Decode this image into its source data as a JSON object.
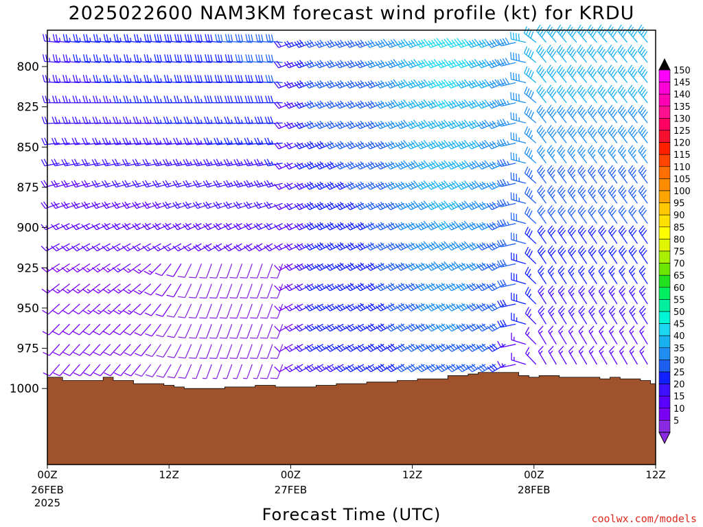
{
  "chart_data": {
    "type": "wind_barb_time_height",
    "title": "2025022600 NAM3KM forecast wind profile (kt) for KRDU",
    "xlabel": "Forecast Time (UTC)",
    "credit": "coolwx.com/models",
    "y_axis": {
      "quantity": "pressure (hPa)",
      "ticks": [
        800,
        825,
        850,
        875,
        900,
        925,
        950,
        975,
        1000
      ],
      "range": [
        782,
        1007
      ],
      "inverted": true
    },
    "x_axis": {
      "forecast_hours_range": [
        0,
        60
      ],
      "ticks": [
        {
          "hour": 0,
          "label": "00Z",
          "date": "26FEB",
          "year": "2025"
        },
        {
          "hour": 12,
          "label": "12Z",
          "date": "",
          "year": ""
        },
        {
          "hour": 24,
          "label": "00Z",
          "date": "27FEB",
          "year": ""
        },
        {
          "hour": 36,
          "label": "12Z",
          "date": "",
          "year": ""
        },
        {
          "hour": 48,
          "label": "00Z",
          "date": "28FEB",
          "year": ""
        },
        {
          "hour": 60,
          "label": "12Z",
          "date": "",
          "year": ""
        }
      ]
    },
    "colorbar": {
      "units": "kt",
      "values": [
        5,
        10,
        15,
        20,
        25,
        30,
        35,
        40,
        45,
        50,
        55,
        60,
        65,
        70,
        75,
        80,
        85,
        90,
        95,
        100,
        105,
        110,
        115,
        120,
        125,
        130,
        135,
        140,
        145,
        150
      ],
      "colors": [
        "#8a2be2",
        "#7a00f5",
        "#5a00ff",
        "#3e10ff",
        "#1020ff",
        "#1f5ff0",
        "#1f8ef0",
        "#19b0f0",
        "#1bd8f0",
        "#00f5d5",
        "#00f0a0",
        "#00ee60",
        "#20e020",
        "#6ae600",
        "#a8f000",
        "#e0f500",
        "#ffff00",
        "#ffe000",
        "#ffc800",
        "#ffa500",
        "#ff8c00",
        "#ff7000",
        "#ff4500",
        "#ff2000",
        "#f51030",
        "#ff0060",
        "#ff1090",
        "#ff00b5",
        "#ff00d8",
        "#ff00ff"
      ]
    },
    "surface_pressure": {
      "hours": [
        0,
        1,
        2,
        3,
        4,
        5,
        6,
        7,
        8,
        9,
        10,
        11,
        12,
        13,
        14,
        15,
        16,
        17,
        18,
        19,
        20,
        21,
        22,
        23,
        24,
        25,
        26,
        27,
        28,
        29,
        30,
        31,
        32,
        33,
        34,
        35,
        36,
        37,
        38,
        39,
        40,
        41,
        42,
        43,
        44,
        45,
        46,
        47,
        48,
        49,
        50,
        51,
        52,
        53,
        54,
        55,
        56,
        57,
        58,
        59,
        60
      ],
      "values_hpa": [
        993,
        993,
        995,
        995,
        995,
        995,
        993,
        995,
        995,
        997,
        997,
        997,
        998,
        999,
        1000,
        1000,
        1000,
        1000,
        999,
        999,
        999,
        998,
        998,
        999,
        999,
        999,
        999,
        998,
        998,
        997,
        997,
        997,
        996,
        996,
        996,
        995,
        995,
        994,
        994,
        994,
        992,
        992,
        991,
        990,
        990,
        990,
        990,
        992,
        993,
        992,
        992,
        993,
        993,
        993,
        993,
        994,
        993,
        994,
        994,
        995,
        997
      ]
    },
    "wind_samples": [
      {
        "layer_hpa": "785-840",
        "hours": "0-12",
        "direction": "W to WNW",
        "speed_kt": "15-25"
      },
      {
        "layer_hpa": "785-840",
        "hours": "24-36",
        "direction": "WSW",
        "speed_kt": "30-40"
      },
      {
        "layer_hpa": "785-840",
        "hours": "39-44",
        "direction": "WSW",
        "speed_kt": "45-50"
      },
      {
        "layer_hpa": "785-875",
        "hours": "48-60",
        "direction": "NW",
        "speed_kt": "35-45"
      },
      {
        "layer_hpa": "875-950",
        "hours": "0-12",
        "direction": "SW to S",
        "speed_kt": "10-15"
      },
      {
        "layer_hpa": "940-990",
        "hours": "9-18",
        "direction": "SW",
        "speed_kt": "5-10"
      },
      {
        "layer_hpa": "850-975",
        "hours": "24-44",
        "direction": "WSW",
        "speed_kt": "25-45"
      },
      {
        "layer_hpa": "900-975",
        "hours": "48-60",
        "direction": "NW",
        "speed_kt": "20-35"
      }
    ]
  }
}
